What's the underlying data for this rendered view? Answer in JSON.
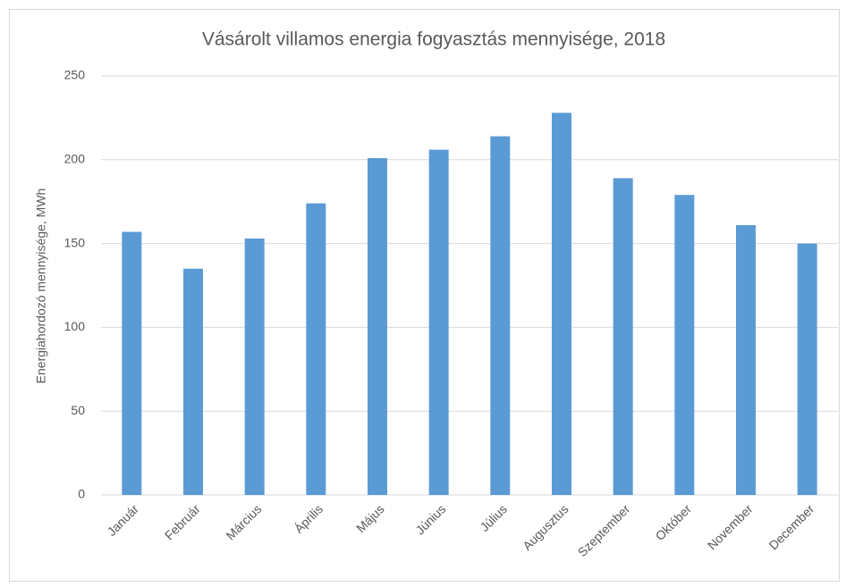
{
  "chart_data": {
    "type": "bar",
    "title": "Vásárolt villamos energia fogyasztás mennyisége, 2018",
    "y_label": "Energiahordozó mennyisége, MWh",
    "categories": [
      "Január",
      "Február",
      "Március",
      "Április",
      "Május",
      "Június",
      "Július",
      "Augusztus",
      "Szeptember",
      "Október",
      "November",
      "December"
    ],
    "values": [
      157,
      135,
      153,
      174,
      201,
      206,
      214,
      228,
      189,
      179,
      161,
      150
    ],
    "color": "#5b9bd5",
    "ylim": [
      0,
      250
    ],
    "yticks": [
      0,
      50,
      100,
      150,
      200,
      250
    ],
    "grid": true
  }
}
